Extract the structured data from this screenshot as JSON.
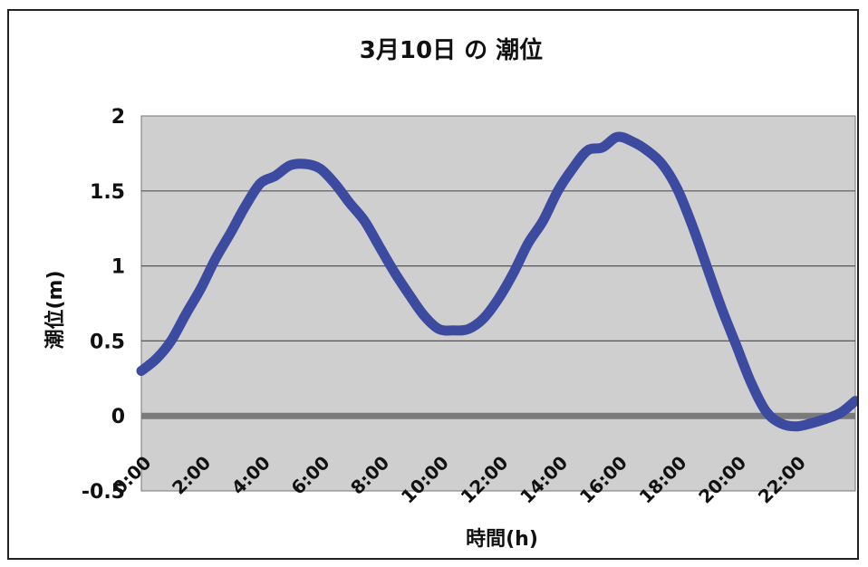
{
  "chart_data": {
    "type": "line",
    "title": "3月10日 の 潮位",
    "xlabel": "時間(h)",
    "ylabel": "潮位(m)",
    "xlim": [
      0,
      24
    ],
    "ylim": [
      -0.5,
      2
    ],
    "yticks": [
      -0.5,
      0,
      0.5,
      1,
      1.5,
      2
    ],
    "ytick_labels": [
      "-0.5",
      "0",
      "0.5",
      "1",
      "1.5",
      "2"
    ],
    "xticks": [
      0,
      2,
      4,
      6,
      8,
      10,
      12,
      14,
      16,
      18,
      20,
      22
    ],
    "xtick_labels": [
      "0:00",
      "2:00",
      "4:00",
      "6:00",
      "8:00",
      "10:00",
      "12:00",
      "14:00",
      "16:00",
      "18:00",
      "20:00",
      "22:00"
    ],
    "grid": true,
    "legend": "none",
    "colors": {
      "line": "#3c4aa0",
      "plot_bg": "#cfcfcf",
      "grid": "#555555",
      "zero_line": "#7a7a7a"
    },
    "series": [
      {
        "x": [
          0,
          0.5,
          1,
          1.5,
          2,
          2.5,
          3,
          3.5,
          4,
          4.5,
          5,
          5.5,
          6,
          6.5,
          7,
          7.5,
          8,
          8.5,
          9,
          9.5,
          10,
          10.5,
          11,
          11.5,
          12,
          12.5,
          13,
          13.5,
          14,
          14.5,
          15,
          15.5,
          16,
          16.5,
          17,
          17.5,
          18,
          18.5,
          19,
          19.5,
          20,
          20.5,
          21,
          21.5,
          22,
          22.5,
          23,
          23.5,
          24
        ],
        "y": [
          0.3,
          0.38,
          0.5,
          0.68,
          0.85,
          1.05,
          1.22,
          1.4,
          1.55,
          1.6,
          1.67,
          1.68,
          1.65,
          1.55,
          1.42,
          1.3,
          1.13,
          0.96,
          0.81,
          0.67,
          0.58,
          0.57,
          0.58,
          0.65,
          0.78,
          0.95,
          1.15,
          1.3,
          1.5,
          1.65,
          1.77,
          1.79,
          1.86,
          1.83,
          1.77,
          1.68,
          1.52,
          1.28,
          1.0,
          0.72,
          0.47,
          0.22,
          0.03,
          -0.05,
          -0.07,
          -0.05,
          -0.02,
          0.02,
          0.1
        ]
      }
    ]
  }
}
